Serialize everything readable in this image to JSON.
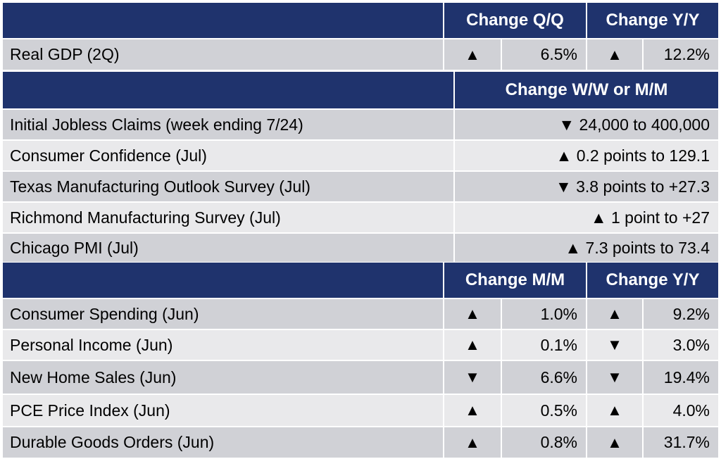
{
  "section1": {
    "headers": [
      "Change Q/Q",
      "Change Y/Y"
    ],
    "rows": [
      {
        "label": "Real GDP (2Q)",
        "arrow1": "▲",
        "value1": "6.5%",
        "arrow2": "▲",
        "value2": "12.2%"
      }
    ]
  },
  "section2": {
    "header": "Change W/W or M/M",
    "rows": [
      {
        "label": "Initial Jobless Claims (week ending 7/24)",
        "value": "▼ 24,000 to 400,000"
      },
      {
        "label": "Consumer Confidence (Jul)",
        "value": "▲ 0.2 points to 129.1"
      },
      {
        "label": "Texas Manufacturing Outlook Survey (Jul)",
        "value": "▼ 3.8 points to +27.3"
      },
      {
        "label": "Richmond Manufacturing Survey (Jul)",
        "value": "▲ 1 point to +27"
      },
      {
        "label": "Chicago PMI (Jul)",
        "value": "▲ 7.3 points to 73.4"
      }
    ]
  },
  "section3": {
    "headers": [
      "Change M/M",
      "Change Y/Y"
    ],
    "rows": [
      {
        "label": "Consumer Spending (Jun)",
        "arrow1": "▲",
        "value1": "1.0%",
        "arrow2": "▲",
        "value2": "9.2%"
      },
      {
        "label": "Personal Income (Jun)",
        "arrow1": "▲",
        "value1": "0.1%",
        "arrow2": "▼",
        "value2": "3.0%"
      },
      {
        "label": "New Home Sales (Jun)",
        "arrow1": "▼",
        "value1": "6.6%",
        "arrow2": "▼",
        "value2": "19.4%"
      },
      {
        "label": "PCE Price Index (Jun)",
        "arrow1": "▲",
        "value1": "0.5%",
        "arrow2": "▲",
        "value2": "4.0%"
      },
      {
        "label": "Durable Goods Orders (Jun)",
        "arrow1": "▲",
        "value1": "0.8%",
        "arrow2": "▲",
        "value2": "31.7%"
      }
    ]
  }
}
